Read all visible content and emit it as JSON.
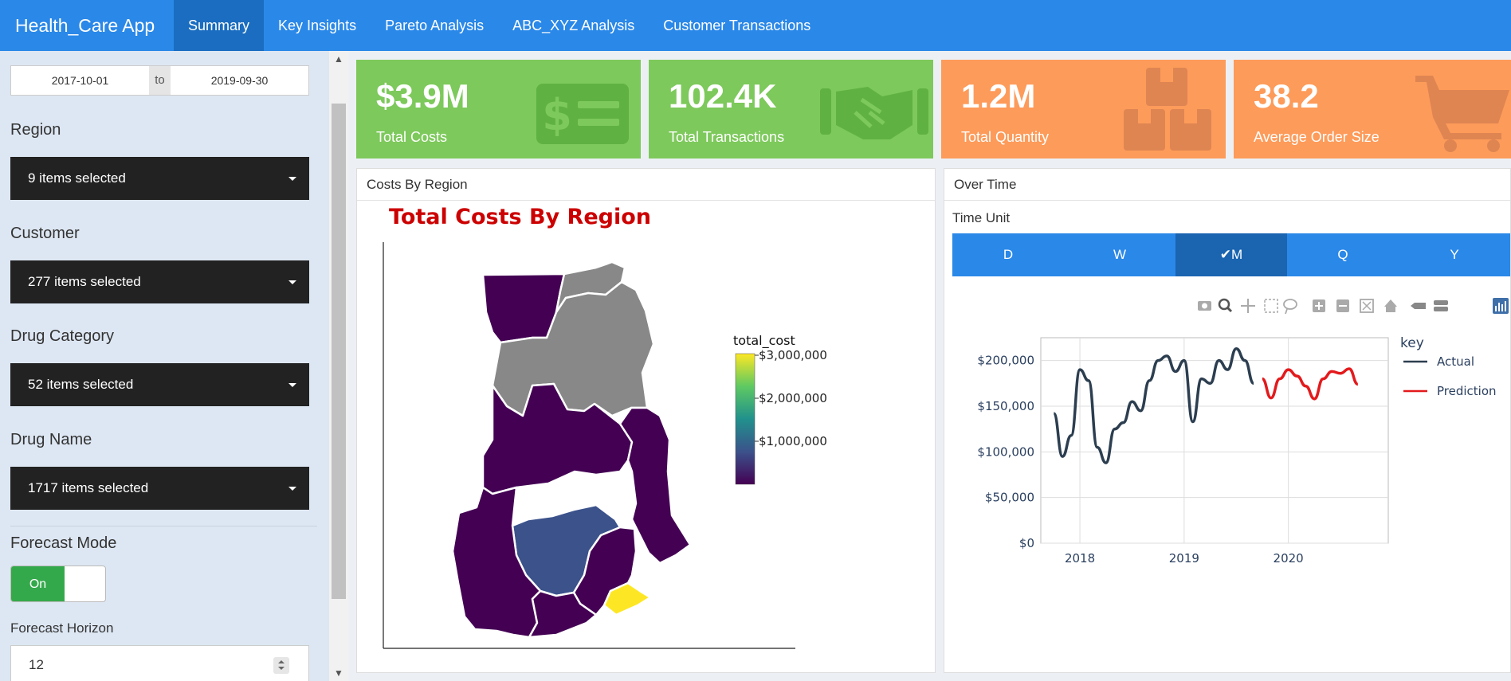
{
  "app": {
    "title": "Health_Care App"
  },
  "nav": {
    "tabs": [
      "Summary",
      "Key Insights",
      "Pareto Analysis",
      "ABC_XYZ Analysis",
      "Customer Transactions"
    ],
    "active": "Summary"
  },
  "sidebar": {
    "date_start": "2017-10-01",
    "date_sep": "to",
    "date_end": "2019-09-30",
    "region_label": "Region",
    "region_value": "9 items selected",
    "customer_label": "Customer",
    "customer_value": "277 items selected",
    "drug_category_label": "Drug Category",
    "drug_category_value": "52 items selected",
    "drug_name_label": "Drug Name",
    "drug_name_value": "1717 items selected",
    "forecast_mode_label": "Forecast Mode",
    "forecast_toggle": "On",
    "forecast_horizon_label": "Forecast Horizon",
    "forecast_horizon_value": "12"
  },
  "kpis": [
    {
      "value": "$3.9M",
      "label": "Total Costs",
      "icon": "money-icon",
      "color": "#7dc95b"
    },
    {
      "value": "102.4K",
      "label": "Total Transactions",
      "icon": "handshake-icon",
      "color": "#7dc95b"
    },
    {
      "value": "1.2M",
      "label": "Total Quantity",
      "icon": "boxes-icon",
      "color": "#fd9b5a"
    },
    {
      "value": "38.2",
      "label": "Average Order Size",
      "icon": "cart-icon",
      "color": "#fd9b5a"
    }
  ],
  "map_panel": {
    "header": "Costs By Region",
    "title": "Total Costs By Region",
    "legend_title": "total_cost",
    "legend_ticks": [
      "$3,000,000",
      "$2,000,000",
      "$1,000,000"
    ]
  },
  "time_panel": {
    "header": "Over Time",
    "time_unit_label": "Time Unit",
    "units": [
      "D",
      "W",
      "M",
      "Q",
      "Y"
    ],
    "active_unit": "M",
    "legend_title": "key"
  },
  "chart_data": {
    "type": "line",
    "xlabel": "",
    "ylabel": "",
    "ylim": [
      0,
      225000
    ],
    "y_ticks": [
      "$200,000",
      "$150,000",
      "$100,000",
      "$50,000",
      "$0"
    ],
    "y_tick_values": [
      200000,
      150000,
      100000,
      50000,
      0
    ],
    "x_ticks": [
      "2018",
      "2019",
      "2020"
    ],
    "legend_placement": "right",
    "grid": true,
    "series": [
      {
        "name": "Actual",
        "color": "#2c3e50",
        "points": [
          [
            "2017-10",
            142000
          ],
          [
            "2017-11",
            95000
          ],
          [
            "2017-12",
            118000
          ],
          [
            "2018-01",
            190000
          ],
          [
            "2018-02",
            178000
          ],
          [
            "2018-03",
            105000
          ],
          [
            "2018-04",
            88000
          ],
          [
            "2018-05",
            125000
          ],
          [
            "2018-06",
            132000
          ],
          [
            "2018-07",
            155000
          ],
          [
            "2018-08",
            145000
          ],
          [
            "2018-09",
            178000
          ],
          [
            "2018-10",
            200000
          ],
          [
            "2018-11",
            205000
          ],
          [
            "2018-12",
            188000
          ],
          [
            "2019-01",
            200000
          ],
          [
            "2019-02",
            133000
          ],
          [
            "2019-03",
            180000
          ],
          [
            "2019-04",
            175000
          ],
          [
            "2019-05",
            200000
          ],
          [
            "2019-06",
            190000
          ],
          [
            "2019-07",
            213000
          ],
          [
            "2019-08",
            200000
          ],
          [
            "2019-09",
            175000
          ]
        ]
      },
      {
        "name": "Prediction",
        "color": "#e31a1c",
        "points": [
          [
            "2019-10",
            180000
          ],
          [
            "2019-11",
            159000
          ],
          [
            "2019-12",
            180000
          ],
          [
            "2020-01",
            190000
          ],
          [
            "2020-02",
            183000
          ],
          [
            "2020-03",
            172000
          ],
          [
            "2020-04",
            158000
          ],
          [
            "2020-05",
            180000
          ],
          [
            "2020-06",
            188000
          ],
          [
            "2020-07",
            186000
          ],
          [
            "2020-08",
            191000
          ],
          [
            "2020-09",
            174000
          ]
        ]
      }
    ]
  }
}
